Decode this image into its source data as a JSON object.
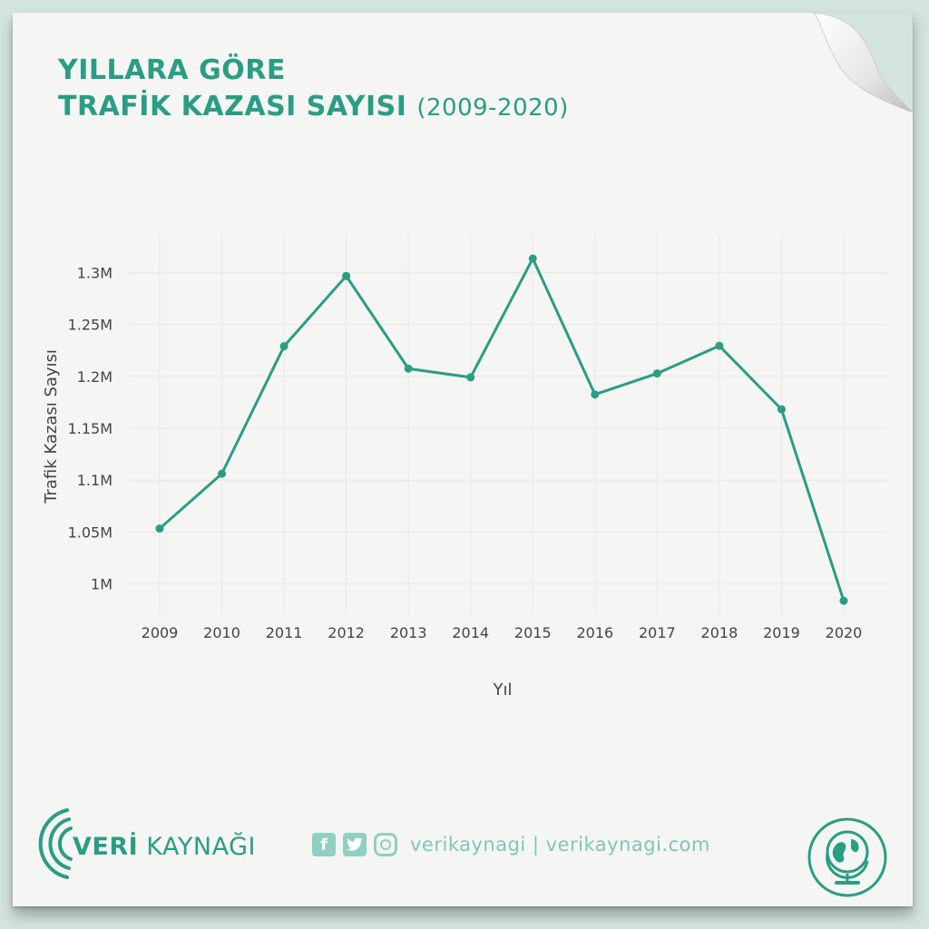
{
  "title": {
    "line1": "YILLARA GÖRE",
    "line2": "TRAFİK KAZASI SAYISI",
    "range": "(2009-2020)"
  },
  "chart_data": {
    "type": "line",
    "xlabel": "Yıl",
    "ylabel": "Trafik Kazası Sayısı",
    "x": [
      "2009",
      "2010",
      "2011",
      "2012",
      "2013",
      "2014",
      "2015",
      "2016",
      "2017",
      "2018",
      "2019",
      "2020"
    ],
    "values": [
      1053346,
      1106201,
      1228928,
      1296634,
      1207354,
      1199010,
      1313359,
      1182491,
      1202716,
      1229364,
      1168144,
      983808
    ],
    "yticks": [
      {
        "value": 1000000,
        "label": "1M"
      },
      {
        "value": 1050000,
        "label": "1.05M"
      },
      {
        "value": 1100000,
        "label": "1.1M"
      },
      {
        "value": 1150000,
        "label": "1.15M"
      },
      {
        "value": 1200000,
        "label": "1.2M"
      },
      {
        "value": 1250000,
        "label": "1.25M"
      },
      {
        "value": 1300000,
        "label": "1.3M"
      }
    ],
    "ylim": [
      970000,
      1337000
    ],
    "grid": true,
    "color": "#2a9d84"
  },
  "footer": {
    "brand_bold": "VERİ",
    "brand_rest": "KAYNAĞI",
    "handle": "verikaynagi | verikaynagi.com",
    "icons": [
      "facebook-icon",
      "twitter-icon",
      "instagram-icon"
    ]
  }
}
